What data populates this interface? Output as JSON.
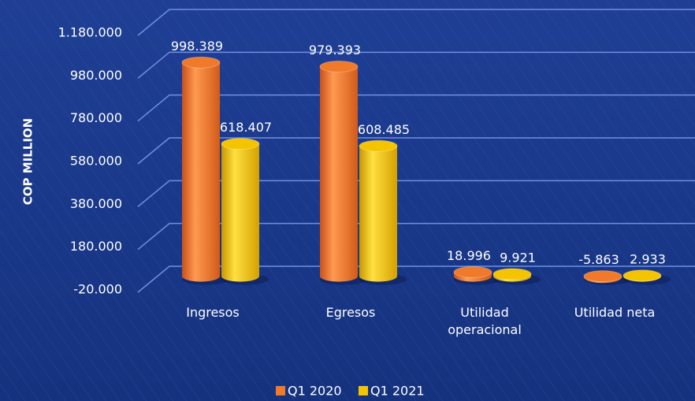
{
  "chart_data": {
    "type": "bar",
    "y_label": "COP MILLION",
    "categories": [
      "Ingresos",
      "Egresos",
      "Utilidad operacional",
      "Utilidad neta"
    ],
    "series": [
      {
        "name": "Q1 2020",
        "color": "#f07a2a",
        "values": [
          998389,
          979393,
          18996,
          -5863
        ],
        "value_labels": [
          "998.389",
          "979.393",
          "18.996",
          "-5.863"
        ]
      },
      {
        "name": "Q1 2021",
        "color": "#f5c400",
        "values": [
          618407,
          608485,
          9921,
          2933
        ],
        "value_labels": [
          "618.407",
          "608.485",
          "9.921",
          "2.933"
        ]
      }
    ],
    "ylim": [
      -20000,
      1180000
    ],
    "yticks": [
      {
        "value": -20000,
        "label": "-20.000"
      },
      {
        "value": 180000,
        "label": "180.000"
      },
      {
        "value": 380000,
        "label": "380.000"
      },
      {
        "value": 580000,
        "label": "580.000"
      },
      {
        "value": 780000,
        "label": "780.000"
      },
      {
        "value": 980000,
        "label": "980.000"
      },
      {
        "value": 1180000,
        "label": "1.180.000"
      }
    ],
    "grid": true,
    "legend": "bottom"
  }
}
